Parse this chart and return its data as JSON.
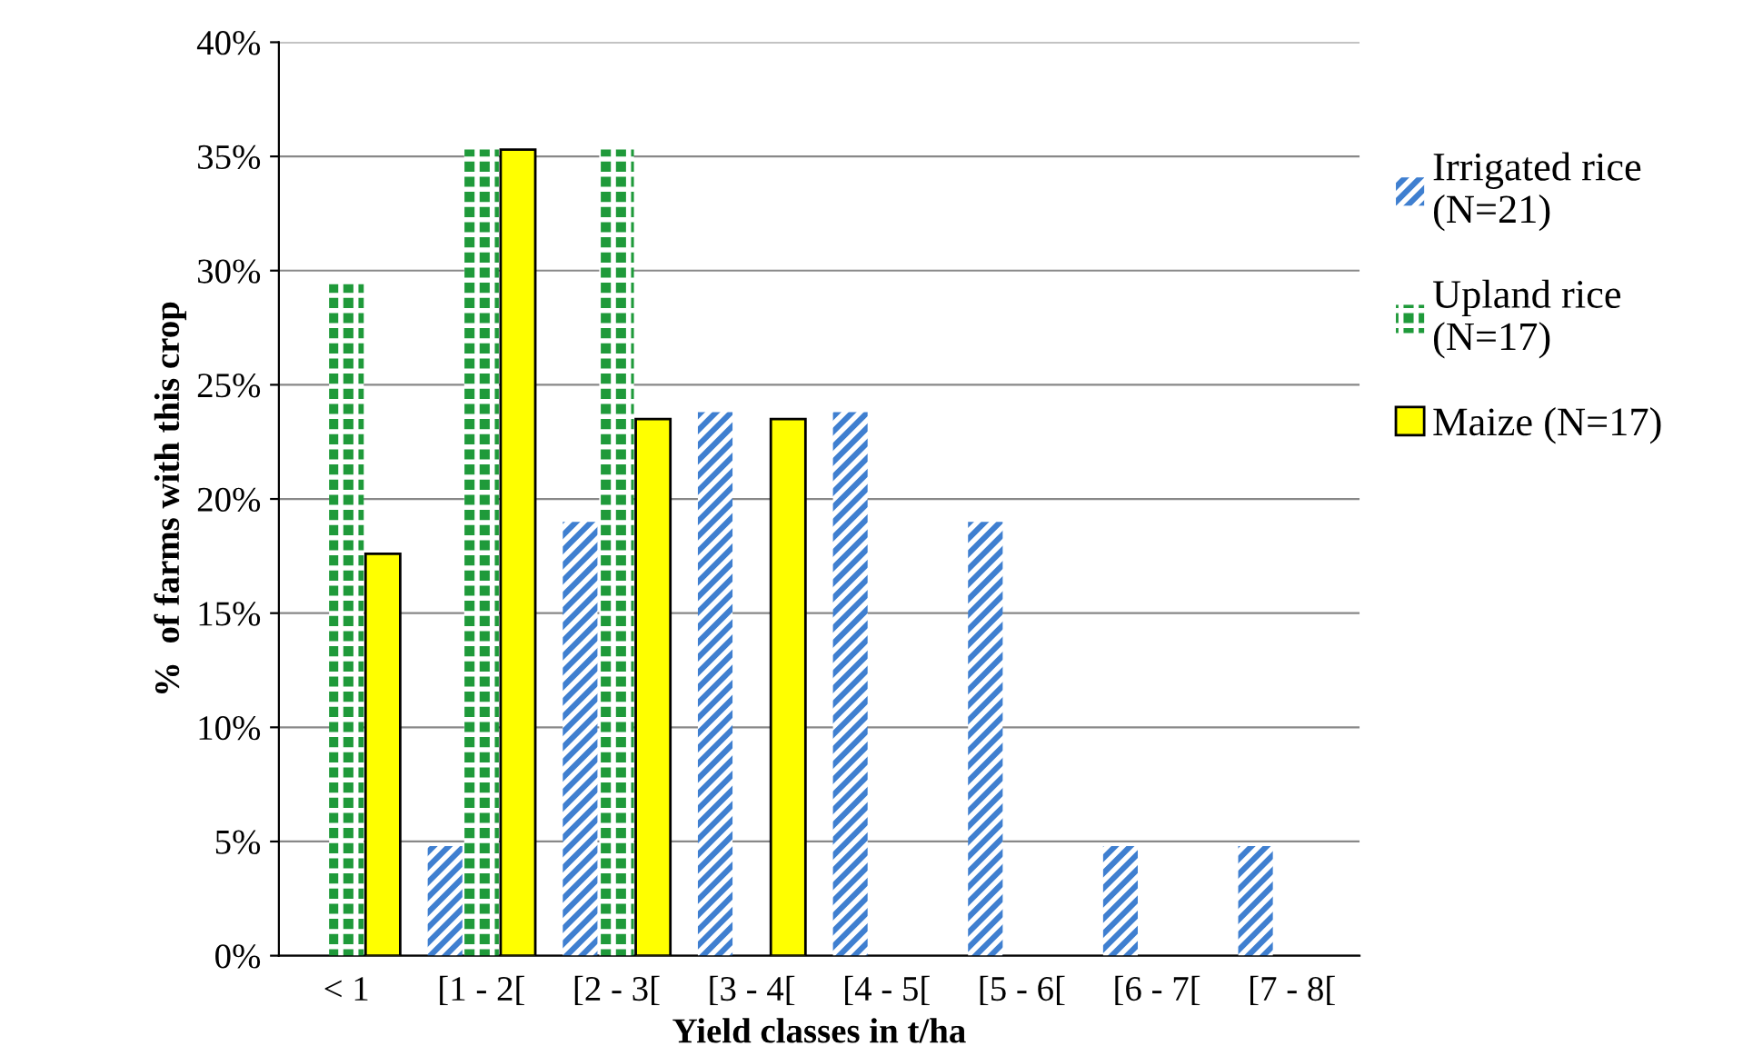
{
  "chart_data": {
    "type": "bar",
    "xlabel": "Yield classes in t/ha",
    "ylabel": "%  of farms with this crop",
    "categories": [
      "< 1",
      "[1 - 2[",
      "[2 - 3[",
      "[3 - 4[",
      "[4 - 5[",
      "[5 - 6[",
      "[6 - 7[",
      "[7 - 8["
    ],
    "series": [
      {
        "name": "Irrigated rice\n(N=21)",
        "color": "#3f7fd0",
        "values": [
          null,
          4.8,
          19.0,
          23.8,
          23.8,
          19.0,
          4.8,
          4.8
        ]
      },
      {
        "name": "Upland rice\n(N=17)",
        "color": "#1f9a3a",
        "values": [
          29.4,
          35.3,
          35.3,
          null,
          null,
          null,
          null,
          null
        ]
      },
      {
        "name": "Maize (N=17)",
        "color": "#ffff00",
        "values": [
          17.6,
          35.3,
          23.5,
          23.5,
          null,
          null,
          null,
          null
        ]
      }
    ],
    "ylim": [
      0,
      40
    ],
    "yticks": [
      {
        "value": 0,
        "label": "0%"
      },
      {
        "value": 5,
        "label": "5%"
      },
      {
        "value": 10,
        "label": "10%"
      },
      {
        "value": 15,
        "label": "15%"
      },
      {
        "value": 20,
        "label": "20%"
      },
      {
        "value": 25,
        "label": "25%"
      },
      {
        "value": 30,
        "label": "30%"
      },
      {
        "value": 35,
        "label": "35%"
      },
      {
        "value": 40,
        "label": "40%"
      }
    ],
    "grid": "y",
    "legend": "right"
  }
}
